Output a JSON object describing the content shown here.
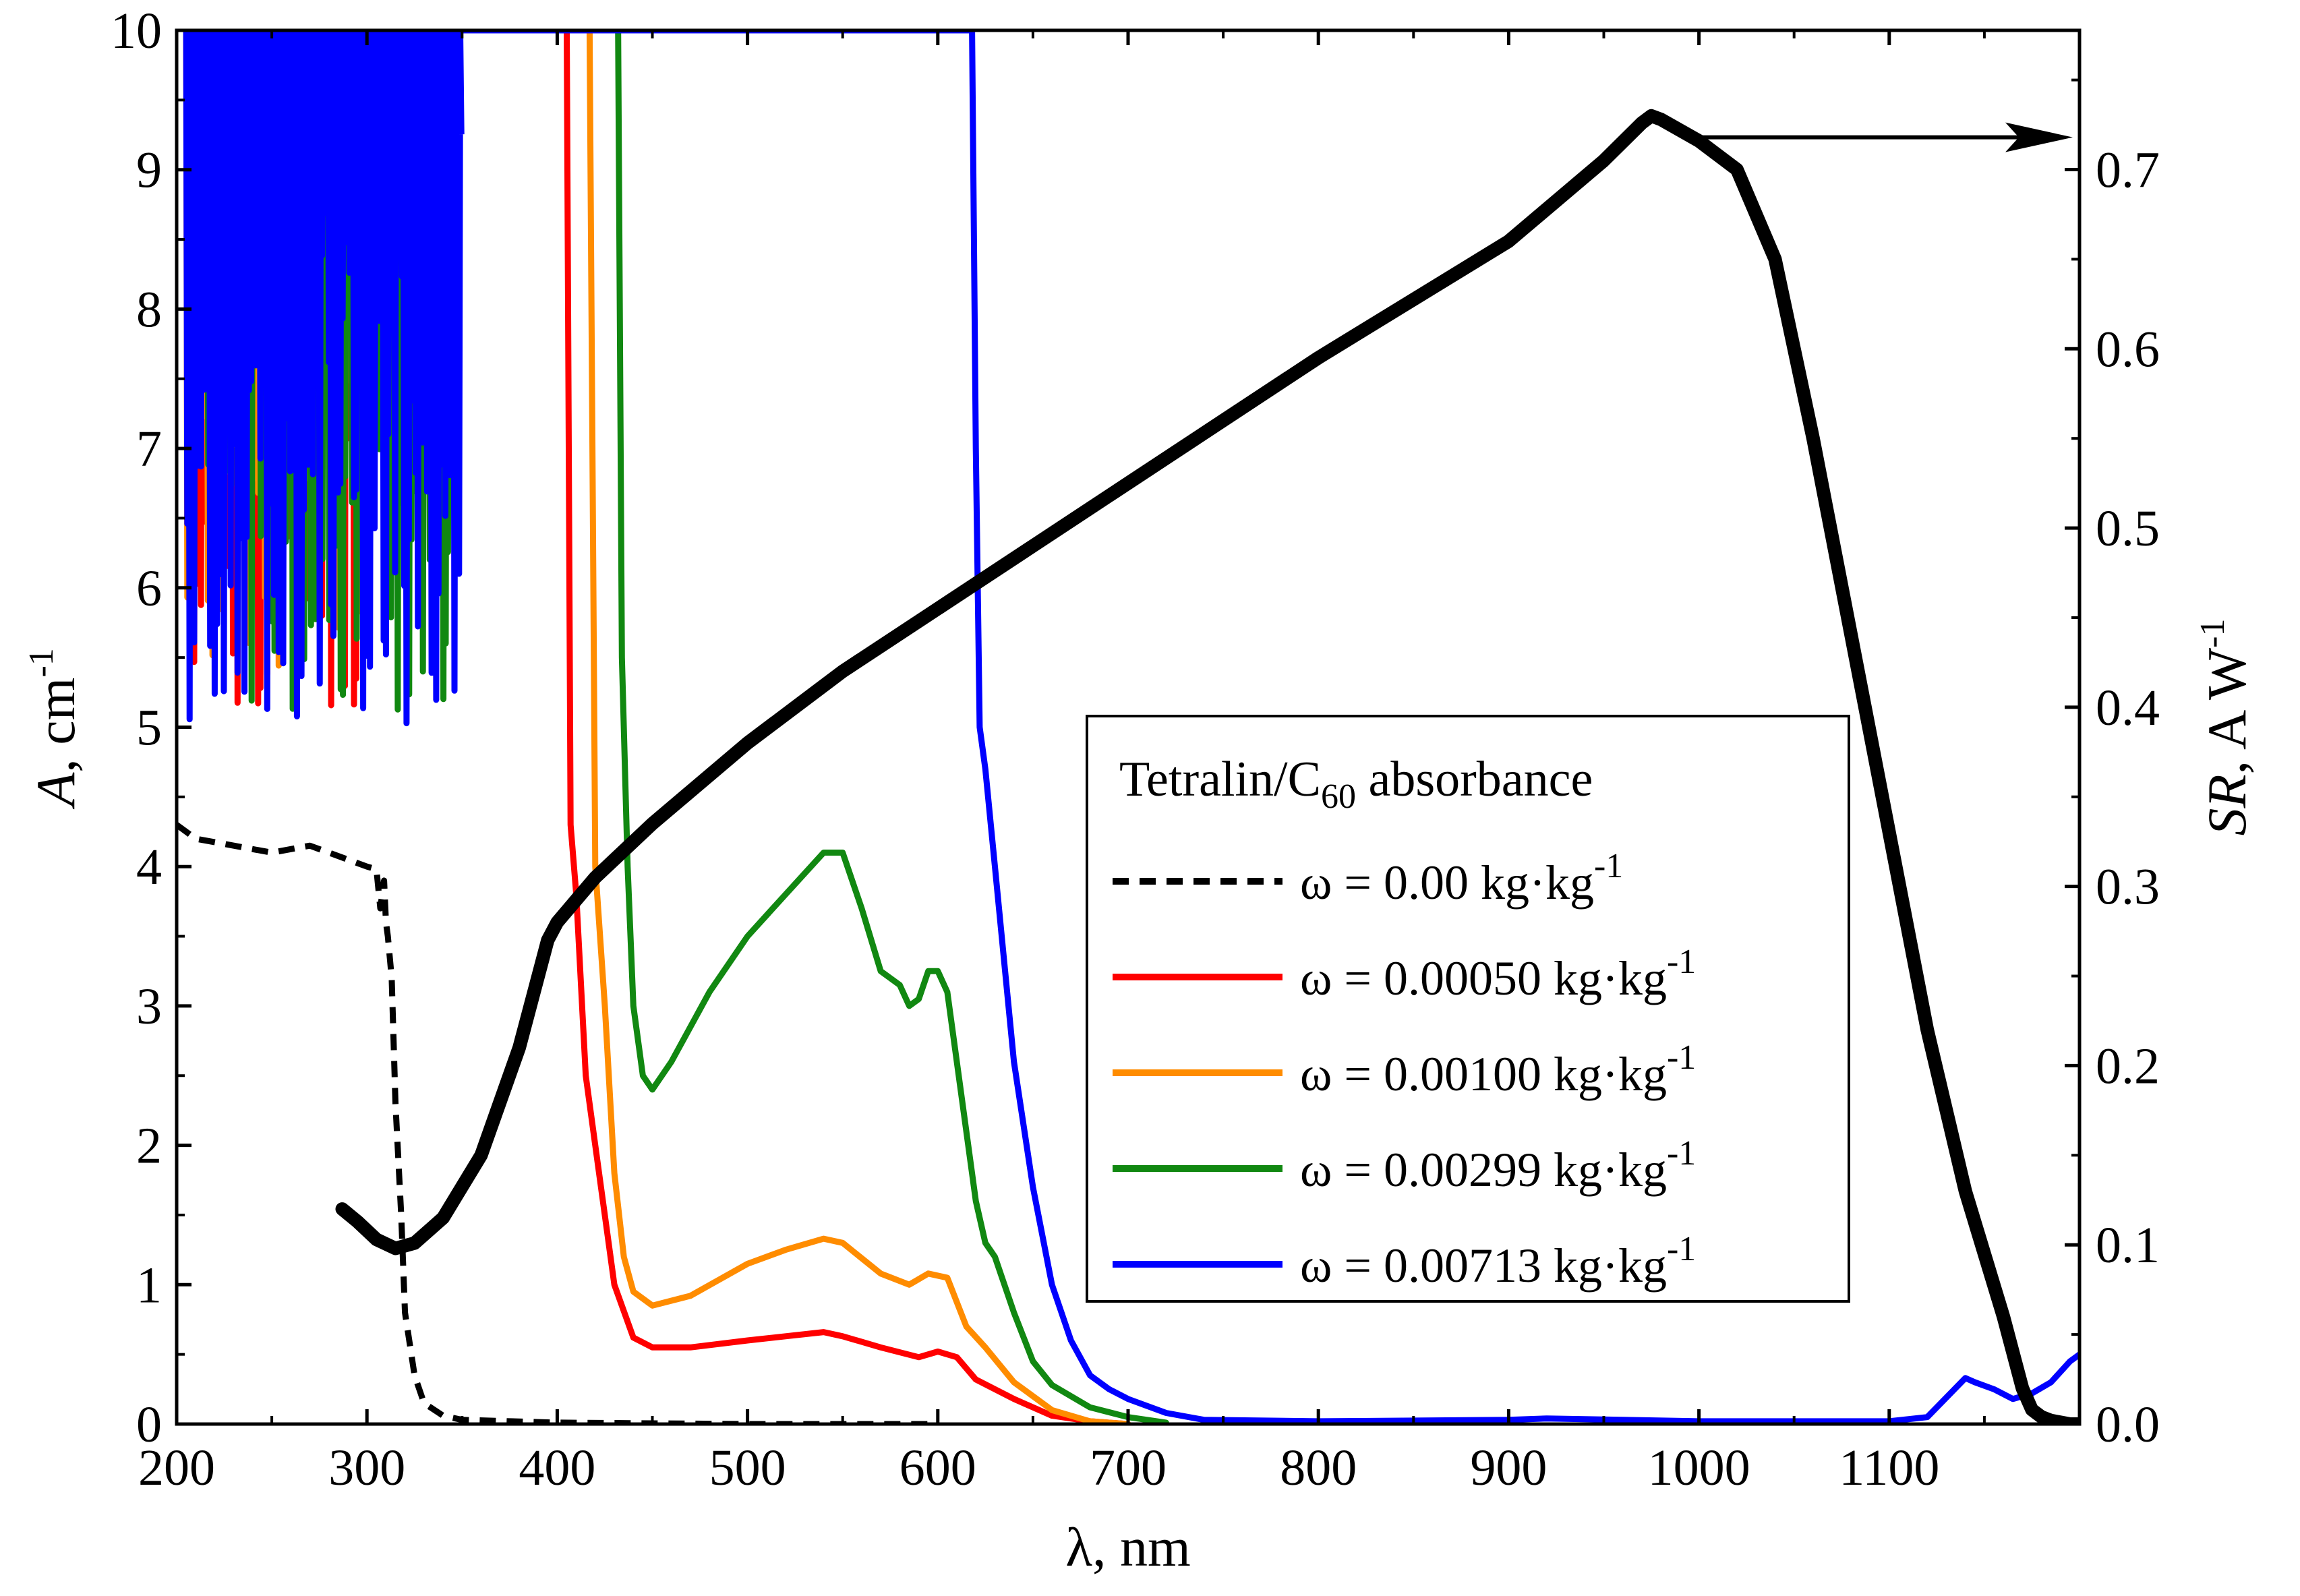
{
  "chart_data": {
    "type": "line",
    "title": "",
    "xlabel": {
      "symbol": "λ",
      "unit": ", nm"
    },
    "ylabel_left": {
      "symbol": "A",
      "unit": ", cm",
      "exp": "-1"
    },
    "ylabel_right": {
      "symbol": "SR",
      "unit": ", A W",
      "exp": "-1"
    },
    "xlim": [
      200,
      1200
    ],
    "ylim_left": [
      0,
      10
    ],
    "ylim_right": [
      0,
      0.7777
    ],
    "x_ticks": [
      "200",
      "300",
      "400",
      "500",
      "600",
      "700",
      "800",
      "900",
      "1000",
      "1100"
    ],
    "x_tick_values": [
      200,
      300,
      400,
      500,
      600,
      700,
      800,
      900,
      1000,
      1100
    ],
    "y_left_ticks": [
      "0",
      "1",
      "2",
      "3",
      "4",
      "5",
      "6",
      "7",
      "8",
      "9",
      "10"
    ],
    "y_left_tick_values": [
      0,
      1,
      2,
      3,
      4,
      5,
      6,
      7,
      8,
      9,
      10
    ],
    "y_right_ticks": [
      "0.0",
      "0.1",
      "0.2",
      "0.3",
      "0.4",
      "0.5",
      "0.6",
      "0.7"
    ],
    "y_right_tick_values": [
      0,
      0.1,
      0.2,
      0.3,
      0.4,
      0.5,
      0.6,
      0.7
    ],
    "legend": {
      "title_main": "Tetralin/C",
      "title_sub": "60",
      "title_rest": " absorbance",
      "placement": "center-right",
      "entries": [
        {
          "label": "ω = 0.00 kg·kg",
          "exp": "-1",
          "color": "#000000",
          "style": "dashed"
        },
        {
          "label": "ω = 0.00050 kg·kg",
          "exp": "-1",
          "color": "#ff0000",
          "style": "solid"
        },
        {
          "label": "ω = 0.00100 kg·kg",
          "exp": "-1",
          "color": "#ff8c00",
          "style": "solid"
        },
        {
          "label": "ω = 0.00299 kg·kg",
          "exp": "-1",
          "color": "#118811",
          "style": "solid"
        },
        {
          "label": "ω = 0.00713 kg·kg",
          "exp": "-1",
          "color": "#0000ff",
          "style": "solid"
        }
      ]
    },
    "series": [
      {
        "name": "ω = 0.00 kg·kg-1",
        "axis": "left",
        "color": "#000000",
        "style": "dashed",
        "x": [
          200,
          210,
          230,
          250,
          270,
          280,
          290,
          300,
          305,
          307,
          309,
          310,
          311,
          313,
          315,
          318,
          320,
          325,
          330,
          340,
          350,
          400,
          500,
          600
        ],
        "y": [
          4.3,
          4.2,
          4.15,
          4.1,
          4.15,
          4.1,
          4.05,
          4.0,
          3.98,
          3.7,
          3.9,
          3.6,
          3.5,
          3.2,
          2.3,
          1.5,
          0.8,
          0.35,
          0.15,
          0.06,
          0.03,
          0.01,
          0.0,
          0.0
        ]
      },
      {
        "name": "ω = 0.00050 kg·kg-1",
        "axis": "left",
        "color": "#ff0000",
        "style": "solid",
        "noisy": {
          "x_start": 205,
          "x_end": 295,
          "y_min": 5.0,
          "y_max": 10,
          "seed": 11
        },
        "x": [
          405,
          407,
          410,
          415,
          420,
          430,
          440,
          450,
          470,
          500,
          520,
          540,
          550,
          570,
          590,
          600,
          610,
          620,
          640,
          660,
          680,
          700
        ],
        "y": [
          10,
          4.3,
          3.8,
          2.5,
          2.0,
          1.0,
          0.62,
          0.55,
          0.55,
          0.6,
          0.63,
          0.66,
          0.63,
          0.55,
          0.48,
          0.52,
          0.48,
          0.32,
          0.18,
          0.06,
          0.02,
          0.0
        ]
      },
      {
        "name": "ω = 0.00100 kg·kg-1",
        "axis": "left",
        "color": "#ff8c00",
        "style": "solid",
        "noisy": {
          "x_start": 205,
          "x_end": 300,
          "y_min": 5.4,
          "y_max": 10,
          "seed": 23
        },
        "x": [
          417,
          420,
          425,
          430,
          435,
          440,
          450,
          470,
          500,
          520,
          540,
          550,
          570,
          585,
          595,
          605,
          615,
          625,
          640,
          660,
          680,
          700
        ],
        "y": [
          10,
          4.0,
          3.0,
          1.8,
          1.2,
          0.95,
          0.85,
          0.92,
          1.15,
          1.25,
          1.33,
          1.3,
          1.08,
          1.0,
          1.08,
          1.05,
          0.7,
          0.55,
          0.3,
          0.1,
          0.02,
          0.0
        ]
      },
      {
        "name": "ω = 0.00299 kg·kg-1",
        "axis": "left",
        "color": "#118811",
        "style": "solid",
        "noisy": {
          "x_start": 210,
          "x_end": 345,
          "y_min": 5.1,
          "y_max": 10,
          "seed": 37
        },
        "x": [
          432,
          434,
          437,
          440,
          445,
          450,
          460,
          480,
          500,
          520,
          540,
          550,
          560,
          570,
          580,
          585,
          590,
          595,
          600,
          605,
          610,
          615,
          620,
          625,
          630,
          640,
          650,
          660,
          680,
          700,
          720
        ],
        "y": [
          10,
          5.5,
          4.0,
          3.0,
          2.5,
          2.4,
          2.6,
          3.1,
          3.5,
          3.8,
          4.1,
          4.1,
          3.7,
          3.25,
          3.15,
          3.0,
          3.05,
          3.25,
          3.25,
          3.1,
          2.6,
          2.1,
          1.6,
          1.3,
          1.2,
          0.8,
          0.45,
          0.28,
          0.12,
          0.05,
          0.01
        ]
      },
      {
        "name": "ω = 0.00713 kg·kg-1",
        "axis": "left",
        "color": "#0000ff",
        "style": "solid",
        "noisy": {
          "x_start": 205,
          "x_end": 350,
          "y_min": 5.0,
          "y_max": 10,
          "seed": 53
        },
        "x": [
          350,
          618,
          620,
          622,
          625,
          630,
          635,
          640,
          650,
          660,
          670,
          680,
          690,
          700,
          720,
          740,
          800,
          900,
          920,
          1000,
          1100,
          1120,
          1140,
          1145,
          1155,
          1165,
          1175,
          1185,
          1195,
          1200
        ],
        "y": [
          10,
          10,
          7.0,
          5.0,
          4.7,
          4.0,
          3.3,
          2.6,
          1.7,
          1.0,
          0.6,
          0.35,
          0.25,
          0.18,
          0.08,
          0.03,
          0.02,
          0.03,
          0.04,
          0.02,
          0.02,
          0.05,
          0.33,
          0.3,
          0.25,
          0.18,
          0.22,
          0.3,
          0.45,
          0.5
        ]
      },
      {
        "name": "SR",
        "axis": "right",
        "color": "#000000",
        "style": "solid",
        "x": [
          287,
          295,
          305,
          315,
          325,
          340,
          360,
          380,
          395,
          400,
          420,
          450,
          500,
          550,
          600,
          650,
          700,
          800,
          900,
          950,
          970,
          975,
          980,
          1000,
          1020,
          1040,
          1060,
          1080,
          1100,
          1120,
          1140,
          1160,
          1170,
          1175,
          1180,
          1185,
          1190,
          1195,
          1200
        ],
        "y": [
          0.12,
          0.113,
          0.103,
          0.098,
          0.101,
          0.115,
          0.15,
          0.21,
          0.27,
          0.28,
          0.305,
          0.335,
          0.38,
          0.42,
          0.455,
          0.49,
          0.525,
          0.595,
          0.66,
          0.705,
          0.726,
          0.73,
          0.728,
          0.716,
          0.7,
          0.65,
          0.55,
          0.44,
          0.33,
          0.22,
          0.13,
          0.06,
          0.02,
          0.008,
          0.004,
          0.002,
          0.001,
          0.0,
          0.0
        ]
      }
    ],
    "annotations": [
      {
        "type": "arrow",
        "from_x": 1000,
        "from_y_right": 0.718,
        "to_x": 1200,
        "to_y_right": 0.718,
        "meaning": "SR curve uses right axis"
      }
    ]
  }
}
